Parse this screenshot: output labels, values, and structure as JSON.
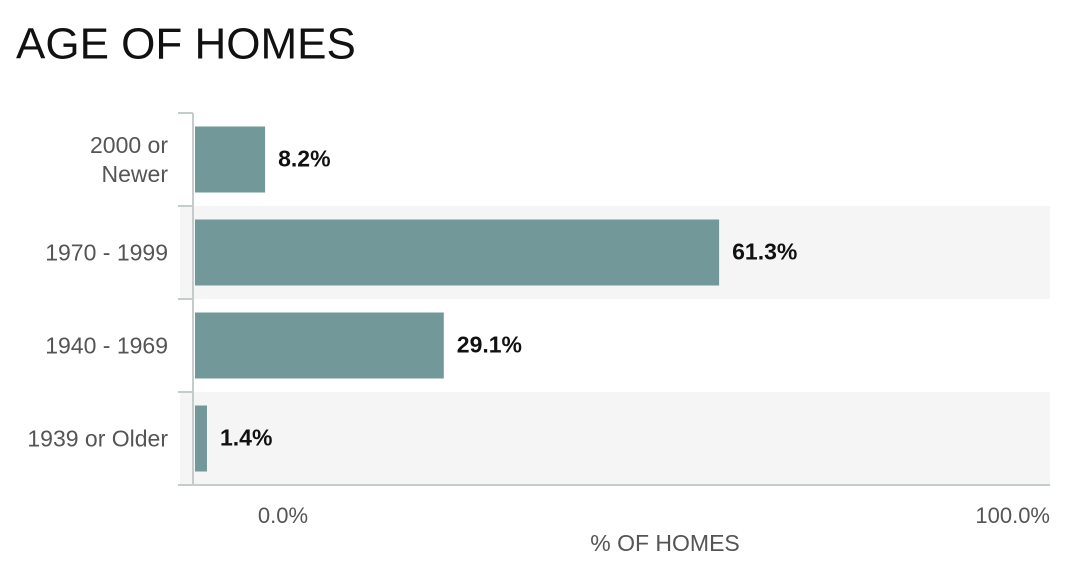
{
  "chart_data": {
    "type": "bar",
    "orientation": "horizontal",
    "title": "AGE OF HOMES",
    "categories": [
      "2000 or Newer",
      "1970 - 1999",
      "1940 - 1969",
      "1939 or Older"
    ],
    "values": [
      8.2,
      61.3,
      29.1,
      1.4
    ],
    "value_labels": [
      "8.2%",
      "61.3%",
      "29.1%",
      "1.4%"
    ],
    "color": "#72989a",
    "xlim": [
      0,
      100
    ],
    "xticks": [
      {
        "value": 0,
        "label": "0.0%"
      },
      {
        "value": 100,
        "label": "100.0%"
      }
    ],
    "xlabel": "% OF HOMES"
  }
}
